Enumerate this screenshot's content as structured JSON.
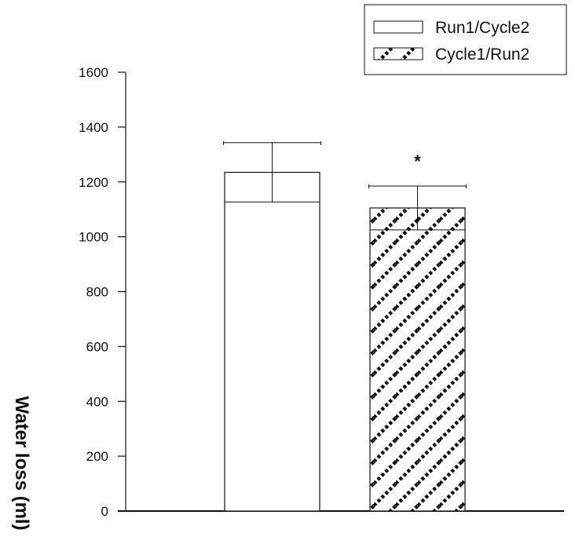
{
  "chart_data": {
    "type": "bar",
    "ylabel": "Water loss (ml)",
    "ylim": [
      0,
      1600
    ],
    "yticks": [
      "0",
      "200",
      "400",
      "600",
      "800",
      "1000",
      "1200",
      "1400",
      "1600"
    ],
    "grid": false,
    "legend_position": "top-right",
    "series": [
      {
        "name": "Run1/Cycle2",
        "value": 1235,
        "error": 108,
        "pattern": "none",
        "annotation": ""
      },
      {
        "name": "Cycle1/Run2",
        "value": 1105,
        "error": 80,
        "pattern": "diagonal-hatch",
        "annotation": "*"
      }
    ]
  }
}
